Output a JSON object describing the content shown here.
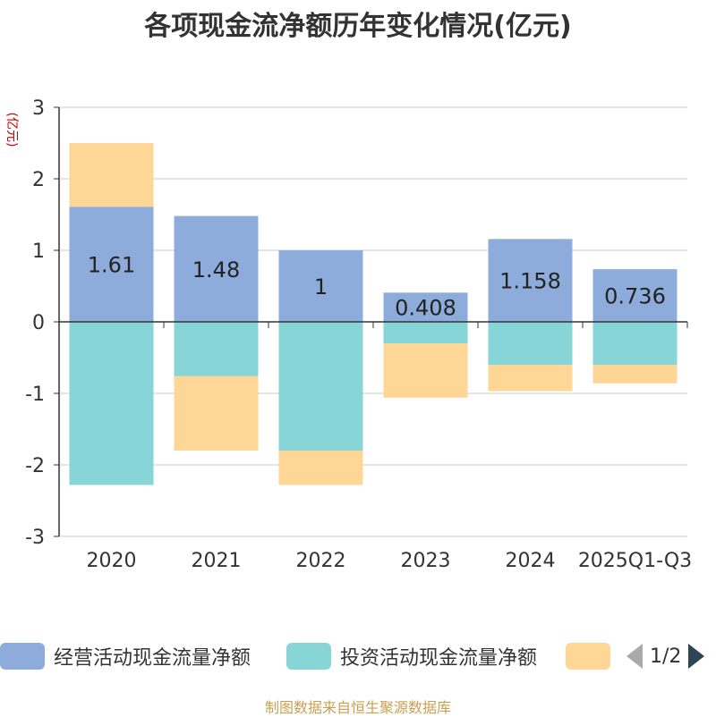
{
  "chart_data": {
    "type": "bar",
    "stacked": true,
    "title": "各项现金流净额历年变化情况(亿元)",
    "ylabel": "(亿元)",
    "ylim": [
      -3,
      3
    ],
    "yticks": [
      -3,
      -2,
      -1,
      0,
      1,
      2,
      3
    ],
    "grid": true,
    "categories": [
      "2020",
      "2021",
      "2022",
      "2023",
      "2024",
      "2025Q1-Q3"
    ],
    "series": [
      {
        "name": "经营活动现金流量净额",
        "color": "#8eacdb",
        "values": [
          1.61,
          1.48,
          1,
          0.408,
          1.158,
          0.736
        ],
        "labels": [
          "1.61",
          "1.48",
          "1",
          "0.408",
          "1.158",
          "0.736"
        ]
      },
      {
        "name": "投资活动现金流量净额",
        "color": "#87d5d6",
        "values": [
          -2.28,
          -0.76,
          -1.8,
          -0.3,
          -0.6,
          -0.6
        ]
      },
      {
        "name": "",
        "color": "#fed696",
        "values": [
          0.89,
          -1.04,
          -0.48,
          -0.76,
          -0.37,
          -0.26
        ]
      }
    ]
  },
  "legend": {
    "items": [
      {
        "label": "经营活动现金流量净额",
        "color": "#8eacdb"
      },
      {
        "label": "投资活动现金流量净额",
        "color": "#87d5d6"
      },
      {
        "label": "",
        "color": "#fed696"
      }
    ],
    "page": "1/2"
  },
  "source": "制图数据来自恒生聚源数据库"
}
